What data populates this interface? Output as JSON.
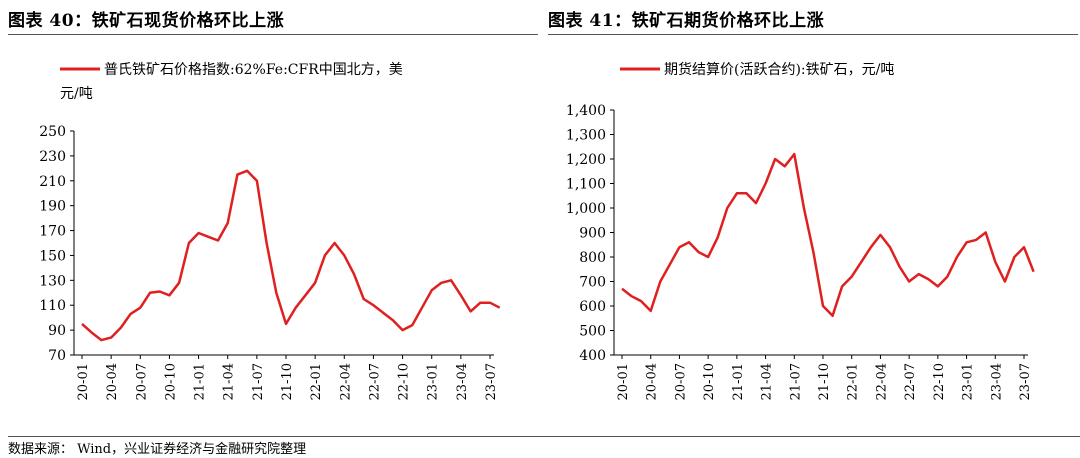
{
  "chart_data": [
    {
      "type": "line",
      "title": "图表 40：铁矿石现货价格环比上涨",
      "legend": "普氏铁矿石价格指数:62%Fe:CFR中国北方，美元/吨",
      "legend_lines": [
        "普氏铁矿石价格指数:62%Fe:CFR中国北方，美",
        "元/吨"
      ],
      "series": [
        {
          "name": "普氏铁矿石价格指数:62%Fe:CFR中国北方，美元/吨",
          "color": "#e02020"
        }
      ],
      "x_ticks": [
        "20-01",
        "20-04",
        "20-07",
        "20-10",
        "21-01",
        "21-04",
        "21-07",
        "21-10",
        "22-01",
        "22-04",
        "22-07",
        "22-10",
        "23-01",
        "23-04",
        "23-07"
      ],
      "y_ticks": [
        "70",
        "90",
        "110",
        "130",
        "150",
        "170",
        "190",
        "210",
        "230",
        "250"
      ],
      "ylim": [
        70,
        250
      ],
      "x": [
        "20-01",
        "20-02",
        "20-03",
        "20-04",
        "20-05",
        "20-06",
        "20-07",
        "20-08",
        "20-09",
        "20-10",
        "20-11",
        "20-12",
        "21-01",
        "21-02",
        "21-03",
        "21-04",
        "21-05",
        "21-06",
        "21-07",
        "21-08",
        "21-09",
        "21-10",
        "21-11",
        "21-12",
        "22-01",
        "22-02",
        "22-03",
        "22-04",
        "22-05",
        "22-06",
        "22-07",
        "22-08",
        "22-09",
        "22-10",
        "22-11",
        "22-12",
        "23-01",
        "23-02",
        "23-03",
        "23-04",
        "23-05",
        "23-06",
        "23-07",
        "23-08"
      ],
      "values": [
        95,
        88,
        82,
        84,
        92,
        103,
        108,
        120,
        121,
        118,
        128,
        160,
        168,
        165,
        162,
        176,
        215,
        218,
        210,
        160,
        120,
        95,
        108,
        118,
        128,
        150,
        160,
        150,
        135,
        115,
        110,
        104,
        98,
        90,
        94,
        108,
        122,
        128,
        130,
        118,
        105,
        112,
        112,
        108
      ]
    },
    {
      "type": "line",
      "title": "图表 41：铁矿石期货价格环比上涨",
      "legend": "期货结算价(活跃合约):铁矿石，元/吨",
      "legend_lines": [
        "期货结算价(活跃合约):铁矿石，元/吨"
      ],
      "series": [
        {
          "name": "期货结算价(活跃合约):铁矿石，元/吨",
          "color": "#e02020"
        }
      ],
      "x_ticks": [
        "20-01",
        "20-04",
        "20-07",
        "20-10",
        "21-01",
        "21-04",
        "21-07",
        "21-10",
        "22-01",
        "22-04",
        "22-07",
        "22-10",
        "23-01",
        "23-04",
        "23-07"
      ],
      "y_ticks": [
        "400",
        "500",
        "600",
        "700",
        "800",
        "900",
        "1,000",
        "1,100",
        "1,200",
        "1,300",
        "1,400"
      ],
      "ylim": [
        400,
        1400
      ],
      "x": [
        "20-01",
        "20-02",
        "20-03",
        "20-04",
        "20-05",
        "20-06",
        "20-07",
        "20-08",
        "20-09",
        "20-10",
        "20-11",
        "20-12",
        "21-01",
        "21-02",
        "21-03",
        "21-04",
        "21-05",
        "21-06",
        "21-07",
        "21-08",
        "21-09",
        "21-10",
        "21-11",
        "21-12",
        "22-01",
        "22-02",
        "22-03",
        "22-04",
        "22-05",
        "22-06",
        "22-07",
        "22-08",
        "22-09",
        "22-10",
        "22-11",
        "22-12",
        "23-01",
        "23-02",
        "23-03",
        "23-04",
        "23-05",
        "23-06",
        "23-07",
        "23-08"
      ],
      "values": [
        670,
        640,
        620,
        580,
        700,
        770,
        840,
        860,
        820,
        800,
        880,
        1000,
        1060,
        1060,
        1020,
        1100,
        1200,
        1170,
        1220,
        1000,
        820,
        600,
        560,
        680,
        720,
        780,
        840,
        890,
        840,
        760,
        700,
        730,
        710,
        680,
        720,
        800,
        860,
        870,
        900,
        780,
        700,
        800,
        840,
        740
      ]
    }
  ],
  "footer": {
    "source": "数据来源： Wind，兴业证券经济与金融研究院整理"
  }
}
